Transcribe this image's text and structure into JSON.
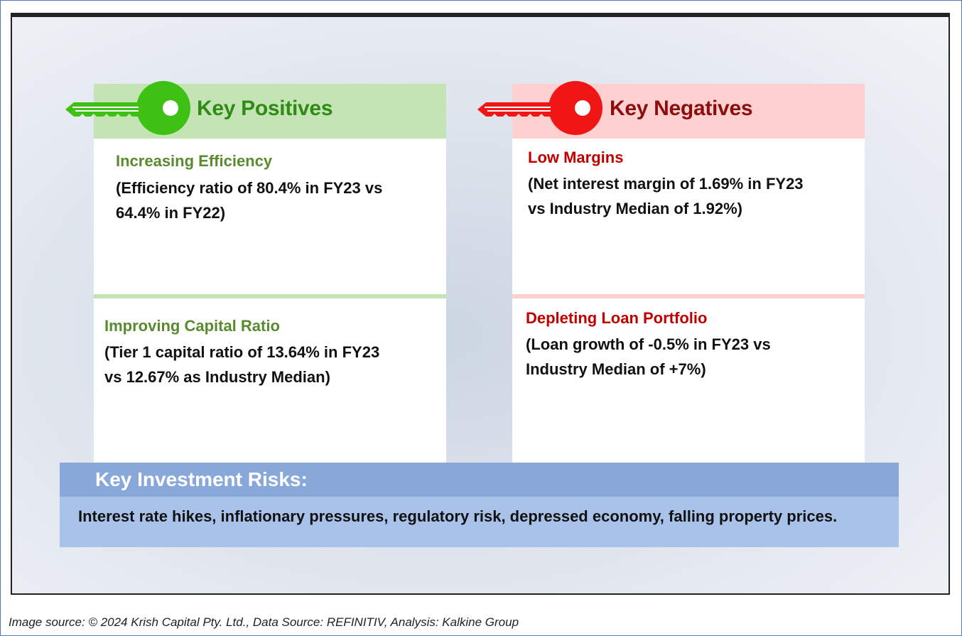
{
  "positives": {
    "title": "Key Positives",
    "color": "#2e8b13",
    "band_color": "#c5e4b5",
    "key_color": "#3ec114",
    "items": [
      {
        "title": "Increasing Efficiency",
        "lines": [
          "(Efficiency ratio of 80.4% in FY23 vs",
          "64.4% in FY22)"
        ]
      },
      {
        "title": "Improving Capital Ratio",
        "lines": [
          "(Tier 1 capital ratio of 13.64% in FY23",
          "vs 12.67% as Industry Median)"
        ]
      }
    ]
  },
  "negatives": {
    "title": "Key Negatives",
    "color": "#8b0d0d",
    "band_color": "#ffd0d0",
    "key_color": "#f01616",
    "items": [
      {
        "title": "Low Margins",
        "lines": [
          "(Net interest margin of 1.69% in FY23",
          "vs Industry Median of 1.92%)"
        ]
      },
      {
        "title": "Depleting Loan Portfolio",
        "lines": [
          "(Loan growth of -0.5% in FY23 vs",
          "Industry Median of +7%)"
        ]
      }
    ]
  },
  "risks": {
    "title": "Key Investment Risks:",
    "text": "Interest rate hikes, inflationary pressures, regulatory risk, depressed economy, falling property prices."
  },
  "footer": {
    "source": "Image source: © 2024 Krish Capital Pty. Ltd., Data Source: REFINITIV, Analysis: Kalkine Group"
  },
  "colors": {
    "positive_item_title": "#5a8a2e",
    "negative_item_title": "#c00000",
    "risk_header": "#89a8da",
    "risk_body": "#a9c2ea"
  }
}
